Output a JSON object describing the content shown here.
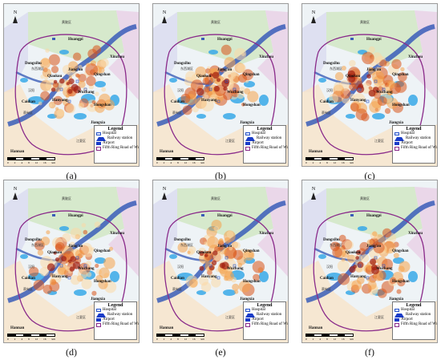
{
  "panels": [
    {
      "caption": "(a)",
      "variant": 0
    },
    {
      "caption": "(b)",
      "variant": 1
    },
    {
      "caption": "(c)",
      "variant": 2
    },
    {
      "caption": "(d)",
      "variant": 3
    },
    {
      "caption": "(e)",
      "variant": 4
    },
    {
      "caption": "(f)",
      "variant": 5
    }
  ],
  "map": {
    "north_label": "N",
    "districts": [
      "Huangpi",
      "Xinzhou",
      "Dongxihu",
      "Jiang'an",
      "Qiaokou",
      "Qingshan",
      "Hanyang",
      "Wuchang",
      "Hongshan",
      "Caidian",
      "Jiangxia",
      "Hannan"
    ],
    "minor_labels": [
      "黄陂区",
      "东西湖区",
      "汉阳",
      "江夏区",
      "蔡甸区"
    ],
    "scale_ticks": [
      "0",
      "2",
      "4",
      "8",
      "12",
      "16",
      "km"
    ]
  },
  "legend": {
    "title": "Legend",
    "items": [
      {
        "label": "Hospital",
        "symbol": "hospital"
      },
      {
        "label": "Railway station",
        "symbol": "railway"
      },
      {
        "label": "Airport",
        "symbol": "airport"
      },
      {
        "label": "Fifth Ring Road of Wuhan",
        "symbol": "ring"
      }
    ]
  },
  "colors": {
    "background": "#eef3f6",
    "ring_road": "#8a2a8a",
    "water": "#37a8e8",
    "river": "#3a5db8",
    "hotspot_low": "#fbd9a6",
    "hotspot_mid": "#f6a24a",
    "hotspot_high": "#d9541a",
    "hotspot_core": "#a11e10",
    "north_district": "#cfe6c2",
    "east_district": "#e8cfe6",
    "west_district": "#d7d7ef",
    "south_district": "#f7e3c9"
  }
}
